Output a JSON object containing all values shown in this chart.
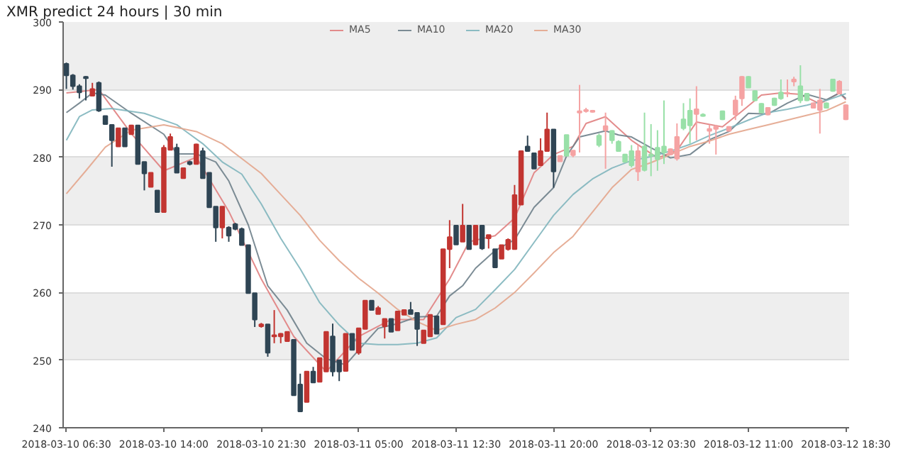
{
  "chart_data": {
    "type": "candlestick",
    "title": "XMR predict 24 hours | 30 min",
    "x": [
      "2018-03-10T06:30",
      "2018-03-10T07:00",
      "2018-03-10T07:30",
      "2018-03-10T08:00",
      "2018-03-10T08:30",
      "2018-03-10T09:00",
      "2018-03-10T09:30",
      "2018-03-10T10:00",
      "2018-03-10T10:30",
      "2018-03-10T11:00",
      "2018-03-10T11:30",
      "2018-03-10T12:00",
      "2018-03-10T12:30",
      "2018-03-10T13:00",
      "2018-03-10T13:30",
      "2018-03-10T14:00",
      "2018-03-10T14:30",
      "2018-03-10T15:00",
      "2018-03-10T15:30",
      "2018-03-10T16:00",
      "2018-03-10T16:30",
      "2018-03-10T17:00",
      "2018-03-10T17:30",
      "2018-03-10T18:00",
      "2018-03-10T18:30",
      "2018-03-10T19:00",
      "2018-03-10T19:30",
      "2018-03-10T20:00",
      "2018-03-10T20:30",
      "2018-03-10T21:00",
      "2018-03-10T21:30",
      "2018-03-10T22:00",
      "2018-03-10T22:30",
      "2018-03-10T23:00",
      "2018-03-10T23:30",
      "2018-03-11T00:00",
      "2018-03-11T00:30",
      "2018-03-11T01:00",
      "2018-03-11T01:30",
      "2018-03-11T02:00",
      "2018-03-11T02:30",
      "2018-03-11T03:00",
      "2018-03-11T03:30",
      "2018-03-11T04:00",
      "2018-03-11T04:30",
      "2018-03-11T05:00",
      "2018-03-11T05:30",
      "2018-03-11T06:00",
      "2018-03-11T06:30",
      "2018-03-11T07:00",
      "2018-03-11T07:30",
      "2018-03-11T08:00",
      "2018-03-11T08:30",
      "2018-03-11T09:00",
      "2018-03-11T09:30",
      "2018-03-11T10:00",
      "2018-03-11T10:30",
      "2018-03-11T11:00",
      "2018-03-11T11:30",
      "2018-03-11T12:00",
      "2018-03-11T12:30",
      "2018-03-11T13:00",
      "2018-03-11T13:30",
      "2018-03-11T14:00",
      "2018-03-11T14:30",
      "2018-03-11T15:00",
      "2018-03-11T15:30",
      "2018-03-11T16:00",
      "2018-03-11T16:30",
      "2018-03-11T17:00",
      "2018-03-11T17:30",
      "2018-03-11T18:00",
      "2018-03-11T18:30",
      "2018-03-11T19:00",
      "2018-03-11T19:30",
      "2018-03-11T20:00",
      "2018-03-11T20:30",
      "2018-03-11T21:00",
      "2018-03-11T21:30",
      "2018-03-11T22:00",
      "2018-03-11T22:30",
      "2018-03-11T23:00",
      "2018-03-11T23:30",
      "2018-03-12T00:00",
      "2018-03-12T00:30",
      "2018-03-12T01:00",
      "2018-03-12T01:30",
      "2018-03-12T02:00",
      "2018-03-12T02:30",
      "2018-03-12T03:00",
      "2018-03-12T03:30",
      "2018-03-12T04:00",
      "2018-03-12T04:30",
      "2018-03-12T05:00",
      "2018-03-12T05:30",
      "2018-03-12T06:00",
      "2018-03-12T06:30",
      "2018-03-12T07:00",
      "2018-03-12T07:30",
      "2018-03-12T08:00",
      "2018-03-12T08:30",
      "2018-03-12T09:00",
      "2018-03-12T09:30",
      "2018-03-12T10:00",
      "2018-03-12T10:30",
      "2018-03-12T11:00",
      "2018-03-12T11:30",
      "2018-03-12T12:00",
      "2018-03-12T12:30",
      "2018-03-12T13:00",
      "2018-03-12T13:30",
      "2018-03-12T14:00",
      "2018-03-12T14:30",
      "2018-03-12T15:00",
      "2018-03-12T15:30",
      "2018-03-12T16:00",
      "2018-03-12T16:30",
      "2018-03-12T17:00",
      "2018-03-12T17:30",
      "2018-03-12T18:00",
      "2018-03-12T18:30"
    ],
    "ohlc": [
      [
        293.8,
        294,
        290.1,
        292.1
      ],
      [
        292.1,
        292.3,
        290,
        290.5
      ],
      [
        290.5,
        290.8,
        288.7,
        289.6
      ],
      [
        291.9,
        292,
        288.4,
        291.7
      ],
      [
        289.1,
        291,
        289,
        290.1
      ],
      [
        291,
        291.2,
        286.7,
        286.9
      ],
      [
        286.1,
        286.1,
        284.9,
        284.9
      ],
      [
        284.8,
        284.8,
        278.6,
        282.5
      ],
      [
        281.6,
        284.3,
        281.6,
        284.3
      ],
      [
        284.3,
        284.3,
        281.6,
        281.6
      ],
      [
        283.4,
        284.8,
        283.4,
        284.7
      ],
      [
        284.7,
        284.7,
        279,
        279
      ],
      [
        279.3,
        279.3,
        275.1,
        277.6
      ],
      [
        275.6,
        277.7,
        275.6,
        277.7
      ],
      [
        275.1,
        275.1,
        271.9,
        271.9
      ],
      [
        271.9,
        281.8,
        271.9,
        281.4
      ],
      [
        281.1,
        283.5,
        281.1,
        283
      ],
      [
        281.4,
        282,
        277.7,
        277.7
      ],
      [
        276.9,
        278.4,
        276.9,
        278.4
      ],
      [
        279.3,
        279.5,
        278.8,
        279
      ],
      [
        279,
        282,
        279,
        281.9
      ],
      [
        280.9,
        281.4,
        276.9,
        276.9
      ],
      [
        277.7,
        277.7,
        272.6,
        272.6
      ],
      [
        272.7,
        272.7,
        267.5,
        269.6
      ],
      [
        269.6,
        272.7,
        268,
        272.7
      ],
      [
        269.6,
        269.8,
        267.5,
        268.4
      ],
      [
        270.1,
        270.3,
        269.2,
        269.4
      ],
      [
        269.4,
        269.6,
        267,
        267
      ],
      [
        267,
        267,
        259.9,
        259.9
      ],
      [
        259.9,
        259.9,
        254.9,
        256
      ],
      [
        255,
        255.5,
        254.8,
        255.3
      ],
      [
        255.3,
        255.3,
        250.5,
        251.1
      ],
      [
        253.5,
        257.4,
        252.5,
        253.7
      ],
      [
        253.5,
        254,
        252.5,
        253.9
      ],
      [
        252.8,
        254.2,
        252.8,
        254.2
      ],
      [
        253,
        253,
        244.8,
        244.8
      ],
      [
        246.4,
        248,
        242.4,
        242.4
      ],
      [
        243.8,
        248.3,
        243.8,
        248.3
      ],
      [
        248.3,
        249,
        246.7,
        246.7
      ],
      [
        246.8,
        250.3,
        246.8,
        250.3
      ],
      [
        248.3,
        254.2,
        248.3,
        254.2
      ],
      [
        253.5,
        255.4,
        247.6,
        248.3
      ],
      [
        250,
        250,
        246.9,
        248.3
      ],
      [
        248.4,
        253.9,
        248.4,
        253.9
      ],
      [
        253.9,
        253.9,
        251.5,
        251.5
      ],
      [
        251.1,
        254.7,
        250.8,
        254.7
      ],
      [
        254.6,
        258.8,
        254.6,
        258.8
      ],
      [
        258.8,
        258.8,
        257.4,
        257.4
      ],
      [
        256.8,
        258,
        256.8,
        257.7
      ],
      [
        255,
        256.1,
        253.2,
        256.1
      ],
      [
        256.1,
        256.1,
        254.2,
        254.2
      ],
      [
        254.4,
        257.2,
        254.4,
        257.2
      ],
      [
        256.7,
        257.4,
        256.7,
        257.4
      ],
      [
        257.4,
        258.6,
        256.8,
        256.8
      ],
      [
        257,
        257,
        252.1,
        254.6
      ],
      [
        252.5,
        254.4,
        252.5,
        254.4
      ],
      [
        253.5,
        256.7,
        253.5,
        256.7
      ],
      [
        256.5,
        256.5,
        253.9,
        253.9
      ],
      [
        255.3,
        266.4,
        255.3,
        266.4
      ],
      [
        266.4,
        270.7,
        263.6,
        268.2
      ],
      [
        269.9,
        270,
        267.1,
        267.1
      ],
      [
        267.5,
        273.1,
        267.5,
        269.9
      ],
      [
        269.9,
        269.9,
        266.4,
        266.4
      ],
      [
        267.1,
        270,
        267,
        269.9
      ],
      [
        269.9,
        270,
        266.3,
        266.5
      ],
      [
        268,
        268.5,
        266.5,
        268.5
      ],
      [
        266.4,
        266.4,
        263.6,
        263.7
      ],
      [
        265,
        267,
        265,
        267
      ],
      [
        266.4,
        268,
        266.2,
        267.8
      ],
      [
        266.4,
        275.9,
        266.4,
        274.4
      ],
      [
        273,
        280.9,
        273,
        280.9
      ],
      [
        281.6,
        283.2,
        280.9,
        280.9
      ],
      [
        280.6,
        280.6,
        278.3,
        278.3
      ],
      [
        278.8,
        282.8,
        278.8,
        280.9
      ],
      [
        280.9,
        286.6,
        280.9,
        284.1
      ],
      [
        284.1,
        284.1,
        275.5,
        277.9
      ],
      [
        280.2,
        280.2,
        279.4,
        279.4
      ],
      [
        280.2,
        283.3,
        280.2,
        283.3
      ],
      [
        281,
        281,
        280,
        280.3
      ],
      [
        286.8,
        290.7,
        280.7,
        286.6
      ],
      [
        287,
        287.3,
        286.6,
        286.8
      ],
      [
        286.9,
        287,
        286.6,
        286.7
      ],
      [
        281.8,
        283.5,
        281.5,
        283.2
      ],
      [
        284.6,
        286.6,
        278.3,
        284
      ],
      [
        282.5,
        284,
        282,
        283.9
      ],
      [
        280.9,
        282.5,
        280.8,
        282.3
      ],
      [
        279.3,
        280.5,
        279.2,
        280.4
      ],
      [
        278.8,
        281.8,
        278.5,
        280.9
      ],
      [
        280.9,
        281.8,
        276.5,
        277.9
      ],
      [
        278.1,
        286.6,
        277.9,
        281.6
      ],
      [
        280.2,
        284.9,
        277.2,
        280.4
      ],
      [
        279.7,
        284,
        278,
        281.4
      ],
      [
        280.7,
        288.4,
        279,
        281.6
      ],
      [
        281.2,
        281.3,
        280.3,
        280.4
      ],
      [
        283,
        285,
        279.5,
        279.8
      ],
      [
        284.3,
        288,
        284,
        285.6
      ],
      [
        284.7,
        288.7,
        282,
        286.9
      ],
      [
        287.1,
        290.5,
        282.5,
        286.4
      ],
      [
        286.1,
        286.5,
        286,
        286.3
      ],
      [
        284.2,
        284.8,
        282,
        283.9
      ],
      [
        284.5,
        284.8,
        280.4,
        284.2
      ],
      [
        285.6,
        286.9,
        285.5,
        286.8
      ],
      [
        284.5,
        284.6,
        283.8,
        283.9
      ],
      [
        288.4,
        289.1,
        285.5,
        286.3
      ],
      [
        291.9,
        292,
        287.6,
        288.7
      ],
      [
        290.3,
        292,
        290.3,
        291.9
      ],
      [
        288.4,
        289.9,
        288.3,
        289.8
      ],
      [
        286.6,
        288,
        286.5,
        287.9
      ],
      [
        287.3,
        287.4,
        286.2,
        286.3
      ],
      [
        287.7,
        288.8,
        287.6,
        288.7
      ],
      [
        288.7,
        291.5,
        288.5,
        289.6
      ],
      [
        289.5,
        291.5,
        288.9,
        289.4
      ],
      [
        291.5,
        291.9,
        290.5,
        291.2
      ],
      [
        288.4,
        293.6,
        288,
        290.5
      ],
      [
        288.4,
        289.5,
        288.3,
        289.4
      ],
      [
        288,
        288.1,
        287.2,
        287.3
      ],
      [
        288.4,
        290.1,
        283.5,
        287
      ],
      [
        287.3,
        288.1,
        287.2,
        288
      ],
      [
        289.8,
        291.6,
        289.7,
        291.5
      ],
      [
        291.2,
        291.4,
        289.3,
        289.4
      ],
      [
        287.7,
        287.8,
        285.5,
        285.6
      ]
    ],
    "colors": [
      "#2f4554",
      "#2f4554",
      "#2f4554",
      "#2f4554",
      "#c23531",
      "#2f4554",
      "#2f4554",
      "#2f4554",
      "#c23531",
      "#2f4554",
      "#c23531",
      "#2f4554",
      "#2f4554",
      "#c23531",
      "#2f4554",
      "#c23531",
      "#c23531",
      "#2f4554",
      "#c23531",
      "#2f4554",
      "#c23531",
      "#2f4554",
      "#2f4554",
      "#2f4554",
      "#c23531",
      "#2f4554",
      "#2f4554",
      "#2f4554",
      "#2f4554",
      "#2f4554",
      "#c23531",
      "#2f4554",
      "#c23531",
      "#c23531",
      "#c23531",
      "#2f4554",
      "#2f4554",
      "#c23531",
      "#2f4554",
      "#c23531",
      "#c23531",
      "#2f4554",
      "#2f4554",
      "#c23531",
      "#2f4554",
      "#c23531",
      "#c23531",
      "#2f4554",
      "#c23531",
      "#c23531",
      "#2f4554",
      "#c23531",
      "#c23531",
      "#2f4554",
      "#2f4554",
      "#c23531",
      "#c23531",
      "#2f4554",
      "#c23531",
      "#c23531",
      "#2f4554",
      "#c23531",
      "#2f4554",
      "#c23531",
      "#2f4554",
      "#c23531",
      "#2f4554",
      "#c23531",
      "#c23531",
      "#c23531",
      "#c23531",
      "#2f4554",
      "#2f4554",
      "#c23531",
      "#c23531",
      "#2f4554",
      "#f5a3a3",
      "#99e0a8",
      "#f5a3a3",
      "#f5a3a3",
      "#f5a3a3",
      "#f5a3a3",
      "#99e0a8",
      "#f5a3a3",
      "#99e0a8",
      "#99e0a8",
      "#99e0a8",
      "#99e0a8",
      "#f5a3a3",
      "#99e0a8",
      "#99e0a8",
      "#99e0a8",
      "#99e0a8",
      "#f5a3a3",
      "#f5a3a3",
      "#99e0a8",
      "#99e0a8",
      "#f5a3a3",
      "#99e0a8",
      "#f5a3a3",
      "#f5a3a3",
      "#99e0a8",
      "#f5a3a3",
      "#f5a3a3",
      "#f5a3a3",
      "#99e0a8",
      "#99e0a8",
      "#99e0a8",
      "#f5a3a3",
      "#99e0a8",
      "#99e0a8",
      "#f5a3a3",
      "#f5a3a3",
      "#99e0a8",
      "#99e0a8",
      "#f5a3a3",
      "#f5a3a3",
      "#99e0a8",
      "#99e0a8",
      "#f5a3a3",
      "#f5a3a3"
    ],
    "series": [
      {
        "name": "MA5",
        "type": "line",
        "color": "#e08080",
        "x": [
          "2018-03-10T06:30",
          "2018-03-10T09:00",
          "2018-03-10T11:30",
          "2018-03-10T14:00",
          "2018-03-10T16:30",
          "2018-03-10T19:00",
          "2018-03-10T21:30",
          "2018-03-11T00:00",
          "2018-03-11T02:30",
          "2018-03-11T05:00",
          "2018-03-11T07:30",
          "2018-03-11T10:00",
          "2018-03-11T12:00",
          "2018-03-11T13:30",
          "2018-03-11T15:30",
          "2018-03-11T17:00",
          "2018-03-11T18:30",
          "2018-03-11T20:00",
          "2018-03-11T21:30",
          "2018-03-11T22:30",
          "2018-03-12T00:00",
          "2018-03-12T02:00",
          "2018-03-12T04:00",
          "2018-03-12T05:30",
          "2018-03-12T07:00",
          "2018-03-12T09:00",
          "2018-03-12T10:30",
          "2018-03-12T12:00",
          "2018-03-12T13:30",
          "2018-03-12T15:00",
          "2018-03-12T16:30",
          "2018-03-12T18:00",
          "2018-03-12T18:30"
        ],
        "values": [
          289.5,
          290,
          283.5,
          278,
          280,
          272,
          262,
          253.5,
          248.3,
          253.5,
          256,
          256,
          262,
          267.5,
          268.4,
          271,
          277.7,
          280.4,
          281.6,
          285,
          286,
          282.5,
          279.9,
          281,
          285.2,
          284.5,
          286.8,
          289.2,
          289.5,
          289.3,
          287.9,
          289.5,
          288.5
        ]
      },
      {
        "name": "MA10",
        "type": "line",
        "color": "#6e7f8a",
        "x": [
          "2018-03-10T06:30",
          "2018-03-10T07:30",
          "2018-03-10T08:30",
          "2018-03-10T09:30",
          "2018-03-10T11:30",
          "2018-03-10T14:00",
          "2018-03-10T15:00",
          "2018-03-10T16:30",
          "2018-03-10T18:00",
          "2018-03-10T19:00",
          "2018-03-10T20:30",
          "2018-03-10T22:00",
          "2018-03-10T23:30",
          "2018-03-11T01:00",
          "2018-03-11T02:30",
          "2018-03-11T04:00",
          "2018-03-11T05:00",
          "2018-03-11T06:30",
          "2018-03-11T08:00",
          "2018-03-11T09:30",
          "2018-03-11T11:00",
          "2018-03-11T12:00",
          "2018-03-11T13:00",
          "2018-03-11T14:00",
          "2018-03-11T15:30",
          "2018-03-11T17:00",
          "2018-03-11T18:30",
          "2018-03-11T20:00",
          "2018-03-11T21:00",
          "2018-03-11T22:00",
          "2018-03-12T00:00",
          "2018-03-12T01:00",
          "2018-03-12T02:00",
          "2018-03-12T03:30",
          "2018-03-12T05:00",
          "2018-03-12T06:30",
          "2018-03-12T08:00",
          "2018-03-12T09:30",
          "2018-03-12T11:00",
          "2018-03-12T12:30",
          "2018-03-12T14:00",
          "2018-03-12T15:30",
          "2018-03-12T17:00",
          "2018-03-12T18:00",
          "2018-03-12T18:30"
        ],
        "values": [
          286.6,
          288,
          289.5,
          289.2,
          286.5,
          283.4,
          280.5,
          280.5,
          279.3,
          276.5,
          270,
          261,
          257.4,
          252.5,
          250.2,
          249.3,
          251.5,
          254.7,
          255.4,
          256.4,
          256.5,
          259.5,
          261,
          263.6,
          266.2,
          267.8,
          272.6,
          275.5,
          280.2,
          283,
          283.9,
          283.3,
          283,
          281.4,
          279.9,
          280.4,
          282.6,
          283.8,
          286.5,
          286.4,
          288,
          289.3,
          288.5,
          289.5,
          288.7
        ]
      },
      {
        "name": "MA20",
        "type": "line",
        "color": "#7fb5bd",
        "x": [
          "2018-03-10T06:30",
          "2018-03-10T07:30",
          "2018-03-10T08:30",
          "2018-03-10T10:00",
          "2018-03-10T12:30",
          "2018-03-10T15:00",
          "2018-03-10T17:00",
          "2018-03-10T18:30",
          "2018-03-10T20:00",
          "2018-03-10T21:30",
          "2018-03-10T23:00",
          "2018-03-11T00:30",
          "2018-03-11T02:00",
          "2018-03-11T03:30",
          "2018-03-11T05:00",
          "2018-03-11T06:30",
          "2018-03-11T08:00",
          "2018-03-11T09:30",
          "2018-03-11T11:00",
          "2018-03-11T12:30",
          "2018-03-11T14:00",
          "2018-03-11T15:30",
          "2018-03-11T17:00",
          "2018-03-11T18:30",
          "2018-03-11T20:00",
          "2018-03-11T21:30",
          "2018-03-11T23:00",
          "2018-03-12T00:30",
          "2018-03-12T02:00",
          "2018-03-12T03:30",
          "2018-03-12T05:00",
          "2018-03-12T06:30",
          "2018-03-12T08:00",
          "2018-03-12T09:30",
          "2018-03-12T11:00",
          "2018-03-12T12:30",
          "2018-03-12T14:00",
          "2018-03-12T15:30",
          "2018-03-12T17:00",
          "2018-03-12T18:30"
        ],
        "values": [
          282.5,
          286,
          287,
          287.2,
          286.5,
          284.8,
          282,
          279.3,
          277.5,
          273.1,
          268,
          263.5,
          258.5,
          255.2,
          252.5,
          252.3,
          252.3,
          252.5,
          253.3,
          256.3,
          257.5,
          260.4,
          263.4,
          267.4,
          271.4,
          274.5,
          276.8,
          278.4,
          279.5,
          280.1,
          280.9,
          281.9,
          283.2,
          284.3,
          285.5,
          286.6,
          287.1,
          287.7,
          288.4,
          289.4
        ]
      },
      {
        "name": "MA30",
        "type": "line",
        "color": "#e3a58c",
        "x": [
          "2018-03-10T06:30",
          "2018-03-10T08:00",
          "2018-03-10T09:30",
          "2018-03-10T11:30",
          "2018-03-10T14:00",
          "2018-03-10T16:30",
          "2018-03-10T18:30",
          "2018-03-10T20:00",
          "2018-03-10T21:30",
          "2018-03-10T23:00",
          "2018-03-11T00:30",
          "2018-03-11T02:00",
          "2018-03-11T03:30",
          "2018-03-11T05:00",
          "2018-03-11T06:30",
          "2018-03-11T08:00",
          "2018-03-11T09:30",
          "2018-03-11T11:00",
          "2018-03-11T12:30",
          "2018-03-11T14:00",
          "2018-03-11T15:30",
          "2018-03-11T17:00",
          "2018-03-11T18:30",
          "2018-03-11T20:00",
          "2018-03-11T21:30",
          "2018-03-11T23:00",
          "2018-03-12T00:30",
          "2018-03-12T02:00",
          "2018-03-12T03:30",
          "2018-03-12T05:00",
          "2018-03-12T06:30",
          "2018-03-12T08:00",
          "2018-03-12T09:30",
          "2018-03-12T11:00",
          "2018-03-12T12:30",
          "2018-03-12T14:00",
          "2018-03-12T15:30",
          "2018-03-12T17:00",
          "2018-03-12T18:30"
        ],
        "values": [
          274.6,
          278,
          281.5,
          284,
          284.8,
          283.8,
          282,
          279.8,
          277.6,
          274.5,
          271.4,
          267.7,
          264.7,
          262.1,
          259.9,
          257.5,
          255.7,
          254.4,
          255.3,
          256,
          257.7,
          260,
          262.9,
          265.9,
          268.3,
          271.9,
          275.5,
          278.2,
          279.2,
          280.4,
          281.6,
          282.4,
          283.4,
          284.1,
          284.8,
          285.5,
          286.2,
          286.9,
          288.2
        ]
      }
    ],
    "xlim": [
      "2018-03-10T06:15",
      "2018-03-12T18:45"
    ],
    "xticks": [
      {
        "value": "2018-03-10T06:30",
        "label": "2018-03-10 06:30"
      },
      {
        "value": "2018-03-10T14:00",
        "label": "2018-03-10 14:00"
      },
      {
        "value": "2018-03-10T21:30",
        "label": "2018-03-10 21:30"
      },
      {
        "value": "2018-03-11T05:00",
        "label": "2018-03-11 05:00"
      },
      {
        "value": "2018-03-11T12:30",
        "label": "2018-03-11 12:30"
      },
      {
        "value": "2018-03-11T20:00",
        "label": "2018-03-11 20:00"
      },
      {
        "value": "2018-03-12T03:30",
        "label": "2018-03-12 03:30"
      },
      {
        "value": "2018-03-12T11:00",
        "label": "2018-03-12 11:00"
      },
      {
        "value": "2018-03-12T18:30",
        "label": "2018-03-12 18:30"
      }
    ],
    "ylim": [
      240,
      300
    ],
    "yticks": [
      240,
      250,
      260,
      270,
      280,
      290,
      300
    ],
    "grid": "y",
    "legend": "top",
    "marker": "none",
    "line_style": "solid"
  }
}
